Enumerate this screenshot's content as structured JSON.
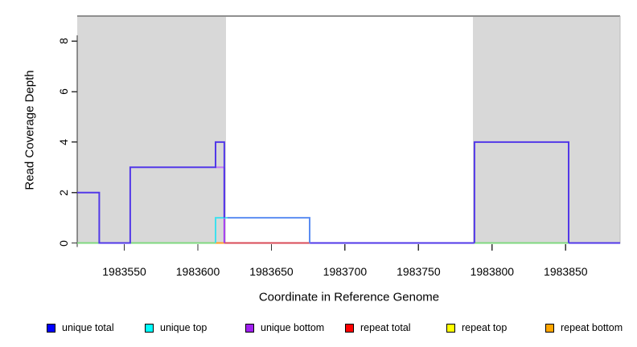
{
  "figure": {
    "ylabel": "Read Coverage Depth",
    "xlabel": "Coordinate in Reference Genome"
  },
  "chart_data": {
    "type": "line",
    "subtype": "step-coverage",
    "xlabel": "Coordinate in Reference Genome",
    "ylabel": "Read Coverage Depth",
    "xlim": [
      1983518,
      1983887
    ],
    "ylim": [
      0,
      9
    ],
    "x_ticks": [
      1983550,
      1983600,
      1983650,
      1983700,
      1983750,
      1983800,
      1983850
    ],
    "y_ticks": [
      0,
      2,
      4,
      6,
      8
    ],
    "grid": false,
    "legend_position": "bottom",
    "shaded_regions": [
      {
        "from": 1983518,
        "to": 1983619,
        "color": "#d8d8d8"
      },
      {
        "from": 1983787,
        "to": 1983887,
        "color": "#d8d8d8"
      }
    ],
    "series": [
      {
        "name": "unique total",
        "color": "#0000ff",
        "segments": [
          [
            1983518,
            1983533,
            2
          ],
          [
            1983533,
            1983554,
            0
          ],
          [
            1983554,
            1983612,
            3
          ],
          [
            1983612,
            1983618,
            4
          ],
          [
            1983618,
            1983676,
            1
          ],
          [
            1983676,
            1983788,
            0
          ],
          [
            1983788,
            1983852,
            4
          ],
          [
            1983852,
            1983887,
            0
          ]
        ]
      },
      {
        "name": "unique top",
        "color": "#00ffff",
        "segments": [
          [
            1983518,
            1983612,
            0
          ],
          [
            1983612,
            1983676,
            1
          ],
          [
            1983676,
            1983887,
            0
          ]
        ]
      },
      {
        "name": "unique bottom",
        "color": "#a020f0",
        "segments": [
          [
            1983518,
            1983533,
            2
          ],
          [
            1983533,
            1983554,
            0
          ],
          [
            1983554,
            1983618,
            3
          ],
          [
            1983618,
            1983788,
            0
          ],
          [
            1983788,
            1983852,
            4
          ],
          [
            1983852,
            1983887,
            0
          ]
        ]
      },
      {
        "name": "repeat total",
        "color": "#ff0000",
        "segments": [
          [
            1983518,
            1983887,
            0
          ]
        ]
      },
      {
        "name": "repeat top",
        "color": "#ffff00",
        "segments": [
          [
            1983518,
            1983887,
            0
          ]
        ]
      },
      {
        "name": "repeat bottom",
        "color": "#ffa500",
        "segments": [
          [
            1983518,
            1983887,
            0
          ]
        ]
      }
    ],
    "drawn_baseline_segments": [
      {
        "from": 1983518,
        "to": 1983612,
        "color_key": "green0"
      },
      {
        "from": 1983612,
        "to": 1983618,
        "color_key": "orange0"
      },
      {
        "from": 1983618,
        "to": 1983676,
        "color_key": "red0"
      },
      {
        "from": 1983676,
        "to": 1983788,
        "color_key": "indigo"
      },
      {
        "from": 1983788,
        "to": 1983852,
        "color_key": "green0"
      },
      {
        "from": 1983852,
        "to": 1983887,
        "color_key": "indigo"
      }
    ],
    "drawn_polylines": [
      {
        "color_key": "lightpurple",
        "points": [
          [
            1983612,
            3
          ],
          [
            1983618,
            3
          ]
        ]
      },
      {
        "color_key": "magenta",
        "points": [
          [
            1983618,
            3
          ],
          [
            1983618,
            0
          ]
        ]
      },
      {
        "color_key": "cyan",
        "points": [
          [
            1983612,
            0
          ],
          [
            1983612,
            1
          ],
          [
            1983620,
            1
          ]
        ]
      },
      {
        "color_key": "cornflower",
        "points": [
          [
            1983620,
            1
          ],
          [
            1983676,
            1
          ],
          [
            1983676,
            0
          ]
        ]
      },
      {
        "color_key": "indigo",
        "points": [
          [
            1983518,
            2
          ],
          [
            1983533,
            2
          ],
          [
            1983533,
            0
          ],
          [
            1983554,
            0
          ],
          [
            1983554,
            3
          ],
          [
            1983612,
            3
          ],
          [
            1983612,
            4
          ],
          [
            1983618,
            4
          ],
          [
            1983618,
            1
          ]
        ]
      },
      {
        "color_key": "indigo",
        "points": [
          [
            1983788,
            0
          ],
          [
            1983788,
            4
          ],
          [
            1983852,
            4
          ],
          [
            1983852,
            0
          ]
        ]
      }
    ]
  },
  "palette": {
    "indigo": "#5238e8",
    "cyan": "#3fe0ee",
    "cornflower": "#5b8df2",
    "magenta": "#a43bf0",
    "lightpurple": "#c57df2",
    "green0": "#7fd87f",
    "red0": "#d84a57",
    "orange0": "#ff9f26",
    "shade": "#d8d8d8",
    "border_top": "#8f8f8f",
    "border_right": "#bcbcbc",
    "axis": "#2f2f2f",
    "tick": "#333333"
  },
  "legend": {
    "items": [
      {
        "label": "unique total",
        "color": "#0000ff"
      },
      {
        "label": "unique top",
        "color": "#00ffff"
      },
      {
        "label": "unique bottom",
        "color": "#a020f0"
      },
      {
        "label": "repeat total",
        "color": "#ff0000"
      },
      {
        "label": "repeat top",
        "color": "#ffff00"
      },
      {
        "label": "repeat bottom",
        "color": "#ffa500"
      }
    ]
  }
}
